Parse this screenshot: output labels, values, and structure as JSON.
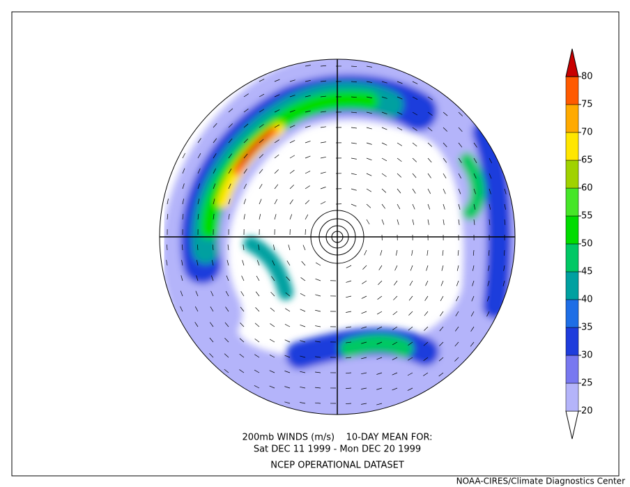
{
  "title": {
    "line1": "200mb WINDS (m/s)    10-DAY MEAN FOR:",
    "line2": "Sat DEC 11 1999 - Mon DEC 20 1999",
    "line3": "NCEP OPERATIONAL DATASET"
  },
  "colorbar": {
    "levels": [
      20,
      25,
      30,
      35,
      40,
      45,
      50,
      55,
      60,
      65,
      70,
      75,
      80
    ],
    "colors": [
      "#ffffff",
      "#b4b4fa",
      "#7878f0",
      "#1e3cdc",
      "#1e6ee6",
      "#00a0a0",
      "#00c864",
      "#00dc00",
      "#46e628",
      "#a0d200",
      "#ffe600",
      "#ffaa00",
      "#ff5a00",
      "#c80000"
    ]
  },
  "credit": "NOAA-CIRES/Climate Diagnostics Center"
}
